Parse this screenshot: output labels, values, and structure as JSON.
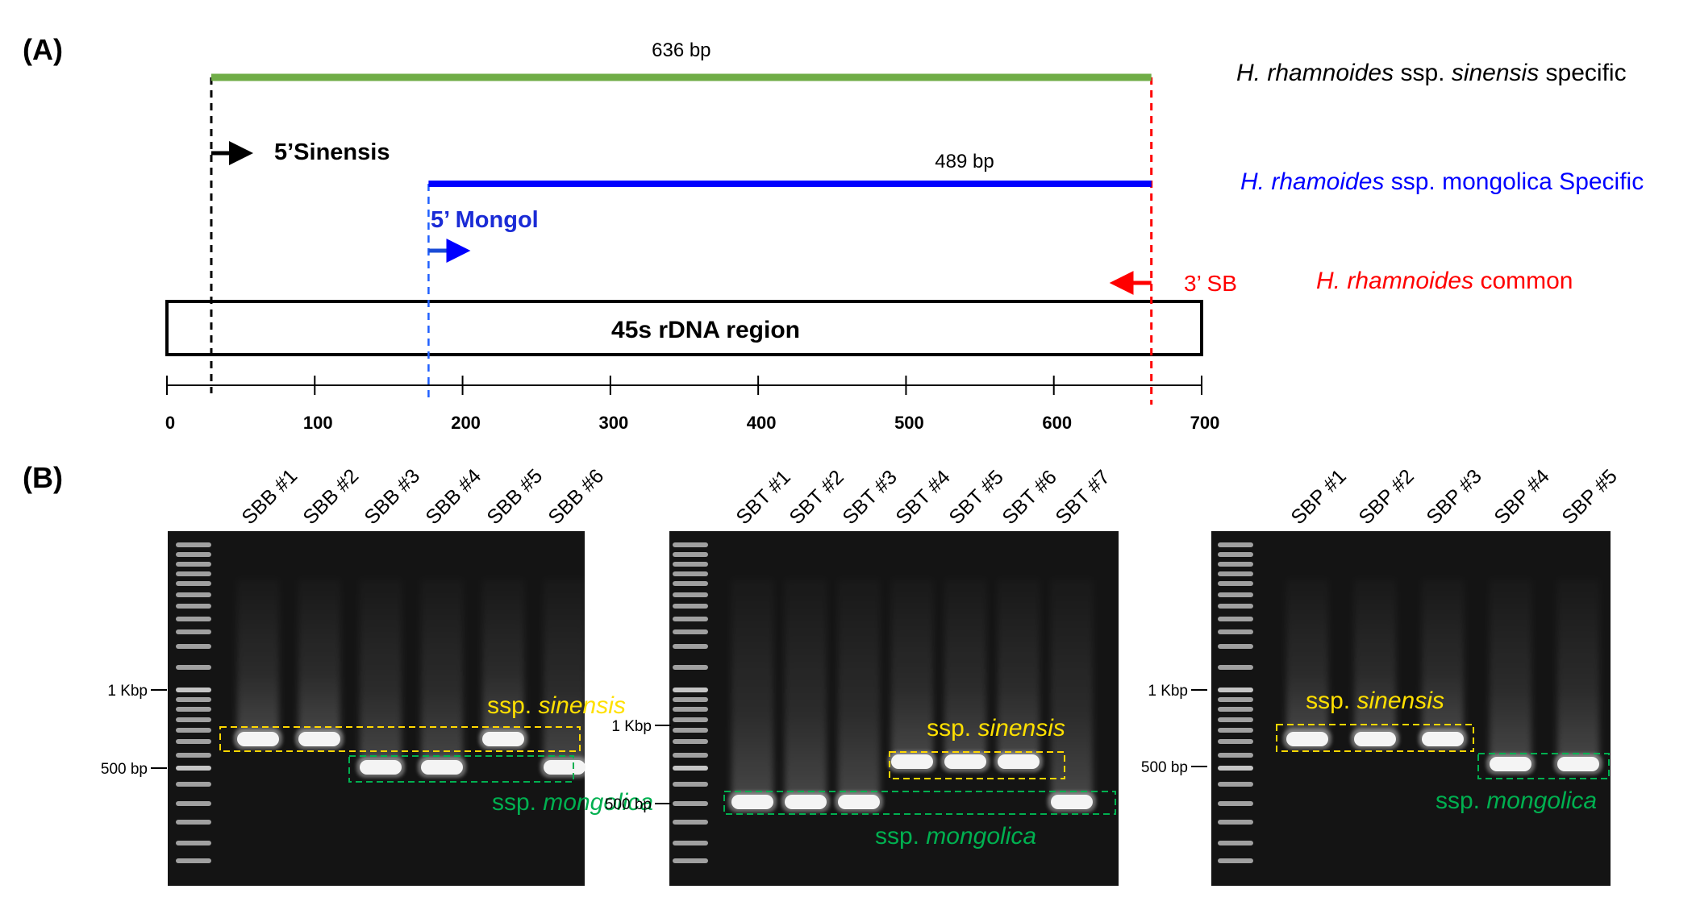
{
  "panel_a": {
    "label": "(A)",
    "amplicon_sinensis": {
      "size": "636 bp",
      "color": "#70ad47",
      "start": 30,
      "end": 666
    },
    "amplicon_mongol": {
      "size": "489 bp",
      "color": "#0000ff",
      "start": 177,
      "end": 666
    },
    "primer_sinensis": {
      "label": "5’Sinensis",
      "position": 30,
      "color": "#000000"
    },
    "primer_mongol": {
      "label": "5’ Mongol",
      "position": 177,
      "color": "#0000ff"
    },
    "primer_common": {
      "label": "3’ SB",
      "position": 666,
      "color": "#ff0000"
    },
    "legend": {
      "sinensis": {
        "species": "H. rhamnoides",
        "ssp": "ssp.",
        "name": "sinensis",
        "suffix": "specific",
        "color": "#000000"
      },
      "mongolica": {
        "species": "H. rhamoides",
        "rest": "ssp. mongolica Specific",
        "color": "#0000ff"
      },
      "common": {
        "species": "H. rhamnoides",
        "rest": "common",
        "color": "#ff0000"
      }
    },
    "region_label": "45s rDNA region",
    "axis": {
      "min": 0,
      "max": 700,
      "ticks": [
        "0",
        "100",
        "200",
        "300",
        "400",
        "500",
        "600",
        "700"
      ]
    }
  },
  "panel_b": {
    "label": "(B)",
    "gels": [
      {
        "lanes": [
          "SBB #1",
          "SBB #2",
          "SBB #3",
          "SBB #4",
          "SBB #5",
          "SBB #6"
        ],
        "ladder_marks": [
          "1 Kbp",
          "500 bp"
        ],
        "sinensis_label": {
          "prefix": "ssp.",
          "name": "sinensis"
        },
        "mongolica_label": {
          "prefix": "ssp.",
          "name": "mongolica"
        },
        "band_pattern": [
          "sinensis",
          "sinensis",
          "mongolica",
          "mongolica",
          "sinensis",
          "mongolica"
        ]
      },
      {
        "lanes": [
          "SBT #1",
          "SBT #2",
          "SBT #3",
          "SBT #4",
          "SBT #5",
          "SBT #6",
          "SBT #7"
        ],
        "ladder_marks": [
          "1 Kbp",
          "500 bp"
        ],
        "sinensis_label": {
          "prefix": "ssp.",
          "name": "sinensis"
        },
        "mongolica_label": {
          "prefix": "ssp.",
          "name": "mongolica"
        },
        "band_pattern": [
          "mongolica",
          "mongolica",
          "mongolica",
          "sinensis",
          "sinensis",
          "sinensis",
          "mongolica"
        ]
      },
      {
        "lanes": [
          "SBP #1",
          "SBP #2",
          "SBP #3",
          "SBP #4",
          "SBP #5"
        ],
        "ladder_marks": [
          "1 Kbp",
          "500 bp"
        ],
        "sinensis_label": {
          "prefix": "ssp.",
          "name": "sinensis"
        },
        "mongolica_label": {
          "prefix": "ssp.",
          "name": "mongolica"
        },
        "band_pattern": [
          "sinensis",
          "sinensis",
          "sinensis",
          "mongolica",
          "mongolica"
        ]
      }
    ],
    "colors": {
      "sinensis_box": "#ffd700",
      "mongolica_box": "#00b050",
      "gel_bg": "#141414"
    }
  }
}
